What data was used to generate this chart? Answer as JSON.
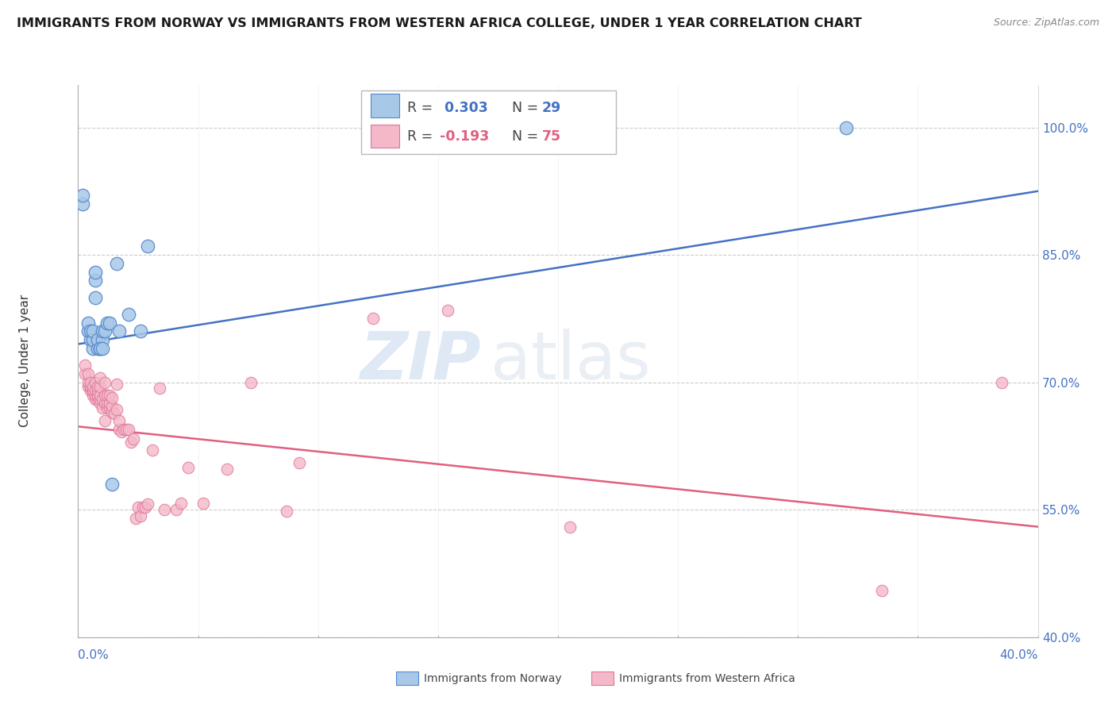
{
  "title": "IMMIGRANTS FROM NORWAY VS IMMIGRANTS FROM WESTERN AFRICA COLLEGE, UNDER 1 YEAR CORRELATION CHART",
  "source": "Source: ZipAtlas.com",
  "ylabel": "College, Under 1 year",
  "right_ytick_values": [
    1.0,
    0.85,
    0.7,
    0.55,
    0.4
  ],
  "right_ytick_labels": [
    "100.0%",
    "85.0%",
    "70.0%",
    "55.0%",
    "40.0%"
  ],
  "color_norway": "#a8c8e8",
  "color_norway_edge": "#5588cc",
  "color_wa": "#f4b8c8",
  "color_wa_edge": "#dd7799",
  "color_norway_line": "#4472C4",
  "color_wa_line": "#e06080",
  "watermark_zip": "ZIP",
  "watermark_atlas": "atlas",
  "norway_x": [
    0.002,
    0.002,
    0.004,
    0.004,
    0.005,
    0.005,
    0.006,
    0.006,
    0.006,
    0.007,
    0.007,
    0.007,
    0.008,
    0.008,
    0.009,
    0.01,
    0.01,
    0.011,
    0.012,
    0.013,
    0.014,
    0.016,
    0.017,
    0.021,
    0.026,
    0.029,
    0.009,
    0.01,
    0.32
  ],
  "norway_y": [
    0.91,
    0.92,
    0.76,
    0.77,
    0.75,
    0.76,
    0.74,
    0.75,
    0.76,
    0.8,
    0.82,
    0.83,
    0.74,
    0.75,
    0.74,
    0.75,
    0.76,
    0.76,
    0.77,
    0.77,
    0.58,
    0.84,
    0.76,
    0.78,
    0.76,
    0.86,
    0.74,
    0.74,
    1.0
  ],
  "wa_x": [
    0.003,
    0.003,
    0.004,
    0.004,
    0.004,
    0.005,
    0.005,
    0.005,
    0.005,
    0.006,
    0.006,
    0.006,
    0.006,
    0.007,
    0.007,
    0.007,
    0.007,
    0.008,
    0.008,
    0.008,
    0.008,
    0.008,
    0.009,
    0.009,
    0.009,
    0.009,
    0.009,
    0.01,
    0.01,
    0.011,
    0.011,
    0.011,
    0.011,
    0.012,
    0.012,
    0.012,
    0.013,
    0.013,
    0.013,
    0.014,
    0.014,
    0.014,
    0.015,
    0.016,
    0.016,
    0.017,
    0.017,
    0.018,
    0.019,
    0.02,
    0.021,
    0.022,
    0.023,
    0.024,
    0.025,
    0.026,
    0.027,
    0.028,
    0.029,
    0.031,
    0.034,
    0.036,
    0.041,
    0.043,
    0.046,
    0.052,
    0.062,
    0.072,
    0.087,
    0.092,
    0.123,
    0.154,
    0.205,
    0.335,
    0.385
  ],
  "wa_y": [
    0.71,
    0.72,
    0.695,
    0.7,
    0.71,
    0.69,
    0.695,
    0.695,
    0.7,
    0.685,
    0.69,
    0.69,
    0.695,
    0.68,
    0.685,
    0.69,
    0.7,
    0.68,
    0.685,
    0.685,
    0.69,
    0.695,
    0.675,
    0.68,
    0.685,
    0.695,
    0.705,
    0.67,
    0.68,
    0.675,
    0.685,
    0.655,
    0.7,
    0.67,
    0.675,
    0.685,
    0.67,
    0.675,
    0.685,
    0.665,
    0.672,
    0.682,
    0.663,
    0.668,
    0.698,
    0.645,
    0.655,
    0.642,
    0.645,
    0.645,
    0.645,
    0.63,
    0.633,
    0.54,
    0.553,
    0.543,
    0.553,
    0.553,
    0.557,
    0.62,
    0.693,
    0.55,
    0.55,
    0.558,
    0.6,
    0.558,
    0.598,
    0.7,
    0.548,
    0.605,
    0.775,
    0.785,
    0.53,
    0.455,
    0.7
  ],
  "xlim": [
    0.0,
    0.4
  ],
  "ylim": [
    0.4,
    1.05
  ],
  "norway_line_x0": 0.0,
  "norway_line_x1": 0.4,
  "norway_line_y0": 0.745,
  "norway_line_y1": 0.925,
  "wa_line_x0": 0.0,
  "wa_line_x1": 0.4,
  "wa_line_y0": 0.648,
  "wa_line_y1": 0.53
}
